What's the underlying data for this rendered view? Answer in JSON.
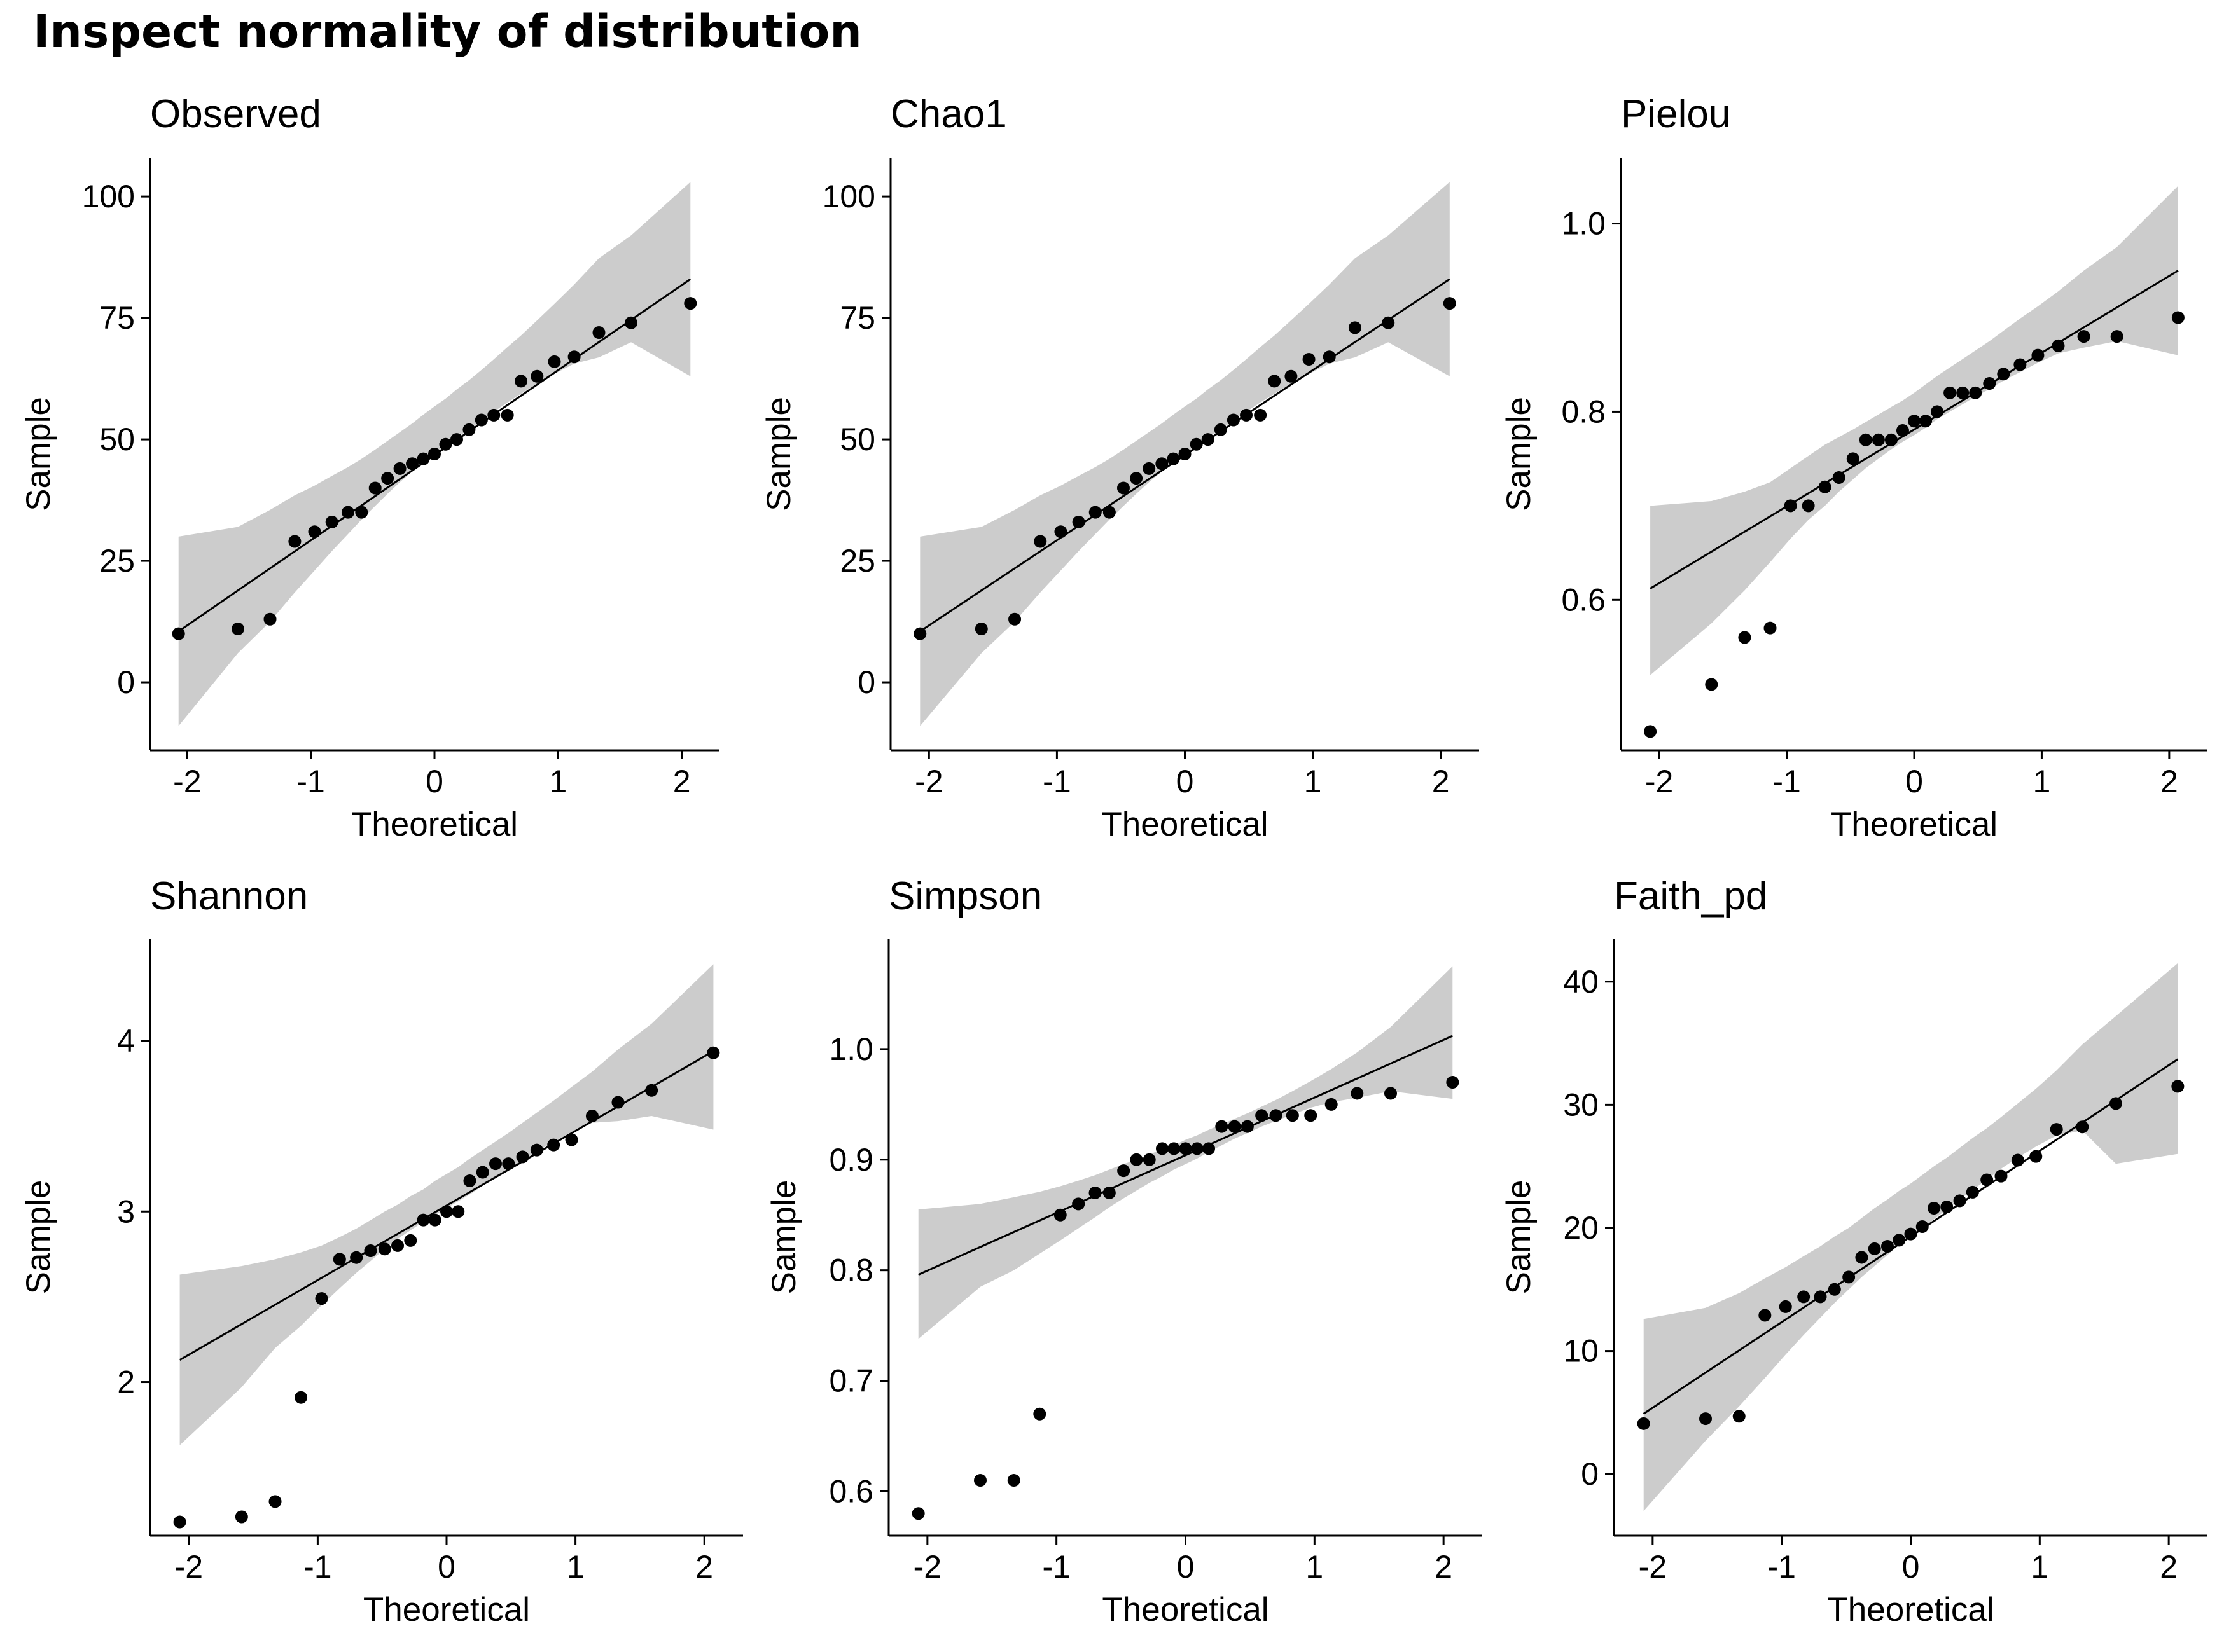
{
  "page_title": "Inspect normality of distribution",
  "chart_data": [
    {
      "type": "scatter",
      "title": "Observed",
      "xlabel": "Theoretical",
      "ylabel": "Sample",
      "xlim": [
        -2.3,
        2.3
      ],
      "ylim": [
        -14,
        108
      ],
      "xticks": [
        -2,
        -1,
        0,
        1,
        2
      ],
      "yticks": [
        0,
        25,
        50,
        75,
        100
      ],
      "ytick_labels": [
        "0",
        "25",
        "50",
        "75",
        "100"
      ],
      "grid": false,
      "points": {
        "x": [
          -2.07,
          -1.59,
          -1.33,
          -1.13,
          -0.97,
          -0.83,
          -0.7,
          -0.59,
          -0.48,
          -0.38,
          -0.28,
          -0.18,
          -0.09,
          0.0,
          0.09,
          0.18,
          0.28,
          0.38,
          0.48,
          0.59,
          0.7,
          0.83,
          0.97,
          1.13,
          1.33,
          1.59,
          2.07
        ],
        "y": [
          10,
          11,
          13,
          29,
          31,
          33,
          35,
          35,
          40,
          42,
          44,
          45,
          46,
          47,
          49,
          50,
          52,
          54,
          55,
          55,
          62,
          63,
          66,
          67,
          72,
          74,
          78
        ]
      },
      "reference_line": {
        "x": [
          -2.07,
          2.07
        ],
        "y": [
          10.5,
          83
        ]
      },
      "confidence_band": {
        "x": [
          -2.07,
          -1.59,
          -1.33,
          -1.13,
          -0.97,
          -0.83,
          -0.7,
          -0.59,
          -0.48,
          -0.38,
          -0.28,
          -0.18,
          -0.09,
          0.0,
          0.09,
          0.18,
          0.28,
          0.38,
          0.48,
          0.59,
          0.7,
          0.83,
          0.97,
          1.13,
          1.33,
          1.59,
          2.07
        ],
        "lower": [
          -9,
          6,
          12.5,
          18.5,
          23,
          27,
          30.5,
          33.5,
          36.3,
          38.8,
          41.2,
          43.4,
          45.3,
          46.8,
          48.5,
          50.3,
          52.1,
          53.9,
          55.7,
          57.6,
          59.4,
          61.5,
          63.5,
          65.6,
          66.9,
          70,
          63
        ],
        "upper": [
          30,
          32,
          35.5,
          38.5,
          40.5,
          42.5,
          44.3,
          46,
          47.9,
          49.7,
          51.5,
          53.3,
          55.1,
          56.8,
          58.4,
          60.3,
          62.2,
          64.3,
          66.5,
          69,
          71.4,
          74.5,
          77.9,
          81.9,
          87.3,
          92,
          103
        ]
      }
    },
    {
      "type": "scatter",
      "title": "Chao1",
      "xlabel": "Theoretical",
      "ylabel": "Sample",
      "xlim": [
        -2.3,
        2.3
      ],
      "ylim": [
        -14,
        108
      ],
      "xticks": [
        -2,
        -1,
        0,
        1,
        2
      ],
      "yticks": [
        0,
        25,
        50,
        75,
        100
      ],
      "ytick_labels": [
        "0",
        "25",
        "50",
        "75",
        "100"
      ],
      "grid": false,
      "points": {
        "x": [
          -2.07,
          -1.59,
          -1.33,
          -1.13,
          -0.97,
          -0.83,
          -0.7,
          -0.59,
          -0.48,
          -0.38,
          -0.28,
          -0.18,
          -0.09,
          0.0,
          0.09,
          0.18,
          0.28,
          0.38,
          0.48,
          0.59,
          0.7,
          0.83,
          0.97,
          1.13,
          1.33,
          1.59,
          2.07
        ],
        "y": [
          10,
          11,
          13,
          29,
          31,
          33,
          35,
          35,
          40,
          42,
          44,
          45,
          46,
          47,
          49,
          50,
          52,
          54,
          55,
          55,
          62,
          63,
          66.5,
          67,
          73,
          74,
          78
        ]
      },
      "reference_line": {
        "x": [
          -2.07,
          2.07
        ],
        "y": [
          10.5,
          83
        ]
      },
      "confidence_band": {
        "x": [
          -2.07,
          -1.59,
          -1.33,
          -1.13,
          -0.97,
          -0.83,
          -0.7,
          -0.59,
          -0.48,
          -0.38,
          -0.28,
          -0.18,
          -0.09,
          0.0,
          0.09,
          0.18,
          0.28,
          0.38,
          0.48,
          0.59,
          0.7,
          0.83,
          0.97,
          1.13,
          1.33,
          1.59,
          2.07
        ],
        "lower": [
          -9,
          6,
          12.5,
          18.5,
          23,
          27,
          30.5,
          33.5,
          36.3,
          38.8,
          41.2,
          43.4,
          45.3,
          46.8,
          48.5,
          50.3,
          52.1,
          53.9,
          55.7,
          57.6,
          59.4,
          61.5,
          63.5,
          65.6,
          66.9,
          70,
          63
        ],
        "upper": [
          30,
          32,
          35.5,
          38.5,
          40.5,
          42.5,
          44.3,
          46,
          47.9,
          49.7,
          51.5,
          53.3,
          55.1,
          56.8,
          58.4,
          60.3,
          62.2,
          64.3,
          66.5,
          69,
          71.4,
          74.5,
          77.9,
          81.9,
          87.3,
          92,
          103
        ]
      }
    },
    {
      "type": "scatter",
      "title": "Pielou",
      "xlabel": "Theoretical",
      "ylabel": "Sample",
      "xlim": [
        -2.3,
        2.3
      ],
      "ylim": [
        0.44,
        1.07
      ],
      "xticks": [
        -2,
        -1,
        0,
        1,
        2
      ],
      "yticks": [
        0.6,
        0.8,
        1.0
      ],
      "ytick_labels": [
        "0.6",
        "0.8",
        "1.0"
      ],
      "grid": false,
      "points": {
        "x": [
          -2.07,
          -1.59,
          -1.33,
          -1.13,
          -0.97,
          -0.83,
          -0.7,
          -0.59,
          -0.48,
          -0.38,
          -0.28,
          -0.18,
          -0.09,
          0.0,
          0.09,
          0.18,
          0.28,
          0.38,
          0.48,
          0.59,
          0.7,
          0.83,
          0.97,
          1.13,
          1.33,
          1.59,
          2.07
        ],
        "y": [
          0.46,
          0.51,
          0.56,
          0.57,
          0.7,
          0.7,
          0.72,
          0.73,
          0.75,
          0.77,
          0.77,
          0.77,
          0.78,
          0.79,
          0.79,
          0.8,
          0.82,
          0.82,
          0.82,
          0.83,
          0.84,
          0.85,
          0.86,
          0.87,
          0.88,
          0.88,
          0.9
        ]
      },
      "reference_line": {
        "x": [
          -2.07,
          2.07
        ],
        "y": [
          0.612,
          0.95
        ]
      },
      "confidence_band": {
        "x": [
          -2.07,
          -1.59,
          -1.33,
          -1.13,
          -0.97,
          -0.83,
          -0.7,
          -0.59,
          -0.48,
          -0.38,
          -0.28,
          -0.18,
          -0.09,
          0.0,
          0.09,
          0.18,
          0.28,
          0.38,
          0.48,
          0.59,
          0.7,
          0.83,
          0.97,
          1.13,
          1.33,
          1.59,
          2.07
        ],
        "lower": [
          0.52,
          0.575,
          0.61,
          0.64,
          0.665,
          0.685,
          0.7,
          0.715,
          0.728,
          0.74,
          0.75,
          0.76,
          0.768,
          0.775,
          0.783,
          0.792,
          0.8,
          0.808,
          0.816,
          0.824,
          0.833,
          0.842,
          0.852,
          0.862,
          0.868,
          0.875,
          0.86
        ],
        "upper": [
          0.7,
          0.705,
          0.715,
          0.725,
          0.74,
          0.753,
          0.765,
          0.773,
          0.781,
          0.789,
          0.797,
          0.805,
          0.812,
          0.82,
          0.829,
          0.838,
          0.847,
          0.856,
          0.865,
          0.875,
          0.886,
          0.899,
          0.912,
          0.928,
          0.95,
          0.975,
          1.04
        ]
      }
    },
    {
      "type": "scatter",
      "title": "Shannon",
      "xlabel": "Theoretical",
      "ylabel": "Sample",
      "xlim": [
        -2.3,
        2.3
      ],
      "ylim": [
        1.1,
        4.6
      ],
      "xticks": [
        -2,
        -1,
        0,
        1,
        2
      ],
      "yticks": [
        2,
        3,
        4
      ],
      "ytick_labels": [
        "2",
        "3",
        "4"
      ],
      "grid": false,
      "points": {
        "x": [
          -2.07,
          -1.59,
          -1.33,
          -1.13,
          -0.97,
          -0.83,
          -0.7,
          -0.59,
          -0.48,
          -0.38,
          -0.28,
          -0.18,
          -0.09,
          0.0,
          0.09,
          0.18,
          0.28,
          0.38,
          0.48,
          0.59,
          0.7,
          0.83,
          0.97,
          1.13,
          1.33,
          1.59,
          2.07
        ],
        "y": [
          1.18,
          1.21,
          1.3,
          1.91,
          2.49,
          2.72,
          2.73,
          2.77,
          2.78,
          2.8,
          2.83,
          2.95,
          2.95,
          3.0,
          3.0,
          3.18,
          3.23,
          3.28,
          3.28,
          3.32,
          3.36,
          3.39,
          3.42,
          3.56,
          3.64,
          3.71,
          3.93
        ]
      },
      "reference_line": {
        "x": [
          -2.07,
          2.07
        ],
        "y": [
          2.13,
          3.94
        ]
      },
      "confidence_band": {
        "x": [
          -2.07,
          -1.59,
          -1.33,
          -1.13,
          -0.97,
          -0.83,
          -0.7,
          -0.59,
          -0.48,
          -0.38,
          -0.28,
          -0.18,
          -0.09,
          0.0,
          0.09,
          0.18,
          0.28,
          0.38,
          0.48,
          0.59,
          0.7,
          0.83,
          0.97,
          1.13,
          1.33,
          1.59,
          2.07
        ],
        "lower": [
          1.63,
          1.97,
          2.2,
          2.33,
          2.45,
          2.55,
          2.64,
          2.71,
          2.78,
          2.84,
          2.89,
          2.94,
          2.98,
          3.02,
          3.06,
          3.1,
          3.15,
          3.2,
          3.25,
          3.3,
          3.35,
          3.41,
          3.46,
          3.52,
          3.53,
          3.56,
          3.48
        ],
        "upper": [
          2.63,
          2.68,
          2.72,
          2.76,
          2.8,
          2.85,
          2.9,
          2.95,
          3.0,
          3.04,
          3.09,
          3.13,
          3.18,
          3.22,
          3.26,
          3.31,
          3.36,
          3.41,
          3.46,
          3.52,
          3.58,
          3.65,
          3.73,
          3.82,
          3.95,
          4.1,
          4.45
        ]
      }
    },
    {
      "type": "scatter",
      "title": "Simpson",
      "xlabel": "Theoretical",
      "ylabel": "Sample",
      "xlim": [
        -2.3,
        2.3
      ],
      "ylim": [
        0.56,
        1.1
      ],
      "xticks": [
        -2,
        -1,
        0,
        1,
        2
      ],
      "yticks": [
        0.6,
        0.7,
        0.8,
        0.9,
        1.0
      ],
      "ytick_labels": [
        "0.6",
        "0.7",
        "0.8",
        "0.9",
        "1.0"
      ],
      "grid": false,
      "points": {
        "x": [
          -2.07,
          -1.59,
          -1.33,
          -1.13,
          -0.97,
          -0.83,
          -0.7,
          -0.59,
          -0.48,
          -0.38,
          -0.28,
          -0.18,
          -0.09,
          0.0,
          0.09,
          0.18,
          0.28,
          0.38,
          0.48,
          0.59,
          0.7,
          0.83,
          0.97,
          1.13,
          1.33,
          1.59,
          2.07
        ],
        "y": [
          0.58,
          0.61,
          0.61,
          0.67,
          0.85,
          0.86,
          0.87,
          0.87,
          0.89,
          0.9,
          0.9,
          0.91,
          0.91,
          0.91,
          0.91,
          0.91,
          0.93,
          0.93,
          0.93,
          0.94,
          0.94,
          0.94,
          0.94,
          0.95,
          0.96,
          0.96,
          0.97
        ]
      },
      "reference_line": {
        "x": [
          -2.07,
          2.07
        ],
        "y": [
          0.796,
          1.012
        ]
      },
      "confidence_band": {
        "x": [
          -2.07,
          -1.59,
          -1.33,
          -1.13,
          -0.97,
          -0.83,
          -0.7,
          -0.59,
          -0.48,
          -0.38,
          -0.28,
          -0.18,
          -0.09,
          0.0,
          0.09,
          0.18,
          0.28,
          0.38,
          0.48,
          0.59,
          0.7,
          0.83,
          0.97,
          1.13,
          1.33,
          1.59,
          2.07
        ],
        "lower": [
          0.738,
          0.785,
          0.8,
          0.815,
          0.827,
          0.838,
          0.848,
          0.857,
          0.865,
          0.872,
          0.879,
          0.885,
          0.891,
          0.896,
          0.901,
          0.907,
          0.913,
          0.919,
          0.924,
          0.93,
          0.935,
          0.941,
          0.947,
          0.952,
          0.956,
          0.962,
          0.955
        ],
        "upper": [
          0.855,
          0.86,
          0.866,
          0.871,
          0.876,
          0.881,
          0.886,
          0.891,
          0.896,
          0.9,
          0.905,
          0.909,
          0.913,
          0.918,
          0.922,
          0.927,
          0.932,
          0.937,
          0.942,
          0.948,
          0.954,
          0.962,
          0.971,
          0.982,
          0.997,
          1.02,
          1.075
        ]
      }
    },
    {
      "type": "scatter",
      "title": "Faith_pd",
      "xlabel": "Theoretical",
      "ylabel": "Sample",
      "xlim": [
        -2.3,
        2.3
      ],
      "ylim": [
        -5,
        43.5
      ],
      "xticks": [
        -2,
        -1,
        0,
        1,
        2
      ],
      "yticks": [
        0,
        10,
        20,
        30,
        40
      ],
      "ytick_labels": [
        "0",
        "10",
        "20",
        "30",
        "40"
      ],
      "grid": false,
      "points": {
        "x": [
          -2.07,
          -1.59,
          -1.33,
          -1.13,
          -0.97,
          -0.83,
          -0.7,
          -0.59,
          -0.48,
          -0.38,
          -0.28,
          -0.18,
          -0.09,
          0.0,
          0.09,
          0.18,
          0.28,
          0.38,
          0.48,
          0.59,
          0.7,
          0.83,
          0.97,
          1.13,
          1.33,
          1.59,
          2.07
        ],
        "y": [
          4.1,
          4.5,
          4.7,
          12.9,
          13.6,
          14.4,
          14.4,
          15.0,
          16.0,
          17.6,
          18.3,
          18.5,
          19.0,
          19.5,
          20.1,
          21.6,
          21.7,
          22.2,
          22.9,
          23.9,
          24.2,
          25.5,
          25.8,
          28.0,
          28.2,
          30.1,
          31.5
        ]
      },
      "reference_line": {
        "x": [
          -2.07,
          2.07
        ],
        "y": [
          4.9,
          33.7
        ]
      },
      "confidence_band": {
        "x": [
          -2.07,
          -1.59,
          -1.33,
          -1.13,
          -0.97,
          -0.83,
          -0.7,
          -0.59,
          -0.48,
          -0.38,
          -0.28,
          -0.18,
          -0.09,
          0.0,
          0.09,
          0.18,
          0.28,
          0.38,
          0.48,
          0.59,
          0.7,
          0.83,
          0.97,
          1.13,
          1.33,
          1.59,
          2.07
        ],
        "lower": [
          -3,
          2.7,
          5.5,
          7.8,
          9.7,
          11.3,
          12.7,
          13.9,
          15.0,
          16.0,
          16.9,
          17.8,
          18.6,
          19.2,
          19.9,
          20.7,
          21.5,
          22.3,
          23.1,
          23.9,
          24.8,
          25.7,
          26.6,
          27.5,
          27.9,
          25.2,
          26
        ],
        "upper": [
          12.6,
          13.5,
          14.7,
          15.9,
          16.8,
          17.7,
          18.5,
          19.3,
          20.0,
          20.8,
          21.6,
          22.3,
          23.0,
          23.6,
          24.3,
          25.0,
          25.7,
          26.5,
          27.3,
          28.1,
          29.0,
          30.1,
          31.3,
          32.8,
          34.9,
          37.2,
          41.5
        ]
      }
    }
  ]
}
